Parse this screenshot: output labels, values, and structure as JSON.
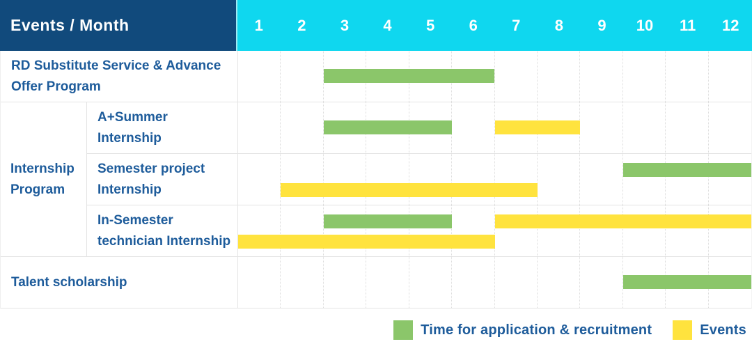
{
  "header": {
    "title": "Events / Month"
  },
  "colors": {
    "header_bg": "#114a7c",
    "months_bg": "#0fd7ef",
    "label_text": "#1e5c9b",
    "application_green": "#8bc66a",
    "events_yellow": "#ffe33e",
    "grid_line": "#dcdcdc",
    "row_border": "#e4e4e4"
  },
  "legend": {
    "items": [
      {
        "series": "application",
        "label": "Time for application & recruitment"
      },
      {
        "series": "events",
        "label": "Events"
      }
    ]
  },
  "chart_data": {
    "type": "gantt",
    "title": "Events / Month",
    "x_unit": "month",
    "x_range": [
      1,
      12
    ],
    "months": [
      "1",
      "2",
      "3",
      "4",
      "5",
      "6",
      "7",
      "8",
      "9",
      "10",
      "11",
      "12"
    ],
    "series_legend": [
      {
        "name": "Time for application & recruitment",
        "key": "application",
        "color": "#8bc66a"
      },
      {
        "name": "Events",
        "key": "events",
        "color": "#ffe33e"
      }
    ],
    "rows": [
      {
        "group": "",
        "label": "RD Substitute Service & Advance Offer Program",
        "bars": [
          {
            "series": "application",
            "start_month": 3,
            "end_month": 6,
            "lane": "center"
          }
        ]
      },
      {
        "group": "Internship Program",
        "label": "A+Summer Internship",
        "bars": [
          {
            "series": "application",
            "start_month": 3,
            "end_month": 5,
            "lane": "center"
          },
          {
            "series": "events",
            "start_month": 7,
            "end_month": 8,
            "lane": "center"
          }
        ]
      },
      {
        "group": "Internship Program",
        "label": "Semester project Internship",
        "bars": [
          {
            "series": "application",
            "start_month": 10,
            "end_month": 12,
            "lane": "top"
          },
          {
            "series": "events",
            "start_month": 2,
            "end_month": 7,
            "lane": "bottom"
          }
        ]
      },
      {
        "group": "Internship Program",
        "label": "In-Semester technician Internship",
        "bars": [
          {
            "series": "application",
            "start_month": 3,
            "end_month": 5,
            "lane": "top"
          },
          {
            "series": "events",
            "start_month": 7,
            "end_month": 12,
            "lane": "top"
          },
          {
            "series": "events",
            "start_month": 1,
            "end_month": 6,
            "lane": "bottom"
          }
        ]
      },
      {
        "group": "",
        "label": "Talent scholarship",
        "bars": [
          {
            "series": "application",
            "start_month": 10,
            "end_month": 12,
            "lane": "center"
          }
        ]
      }
    ]
  }
}
